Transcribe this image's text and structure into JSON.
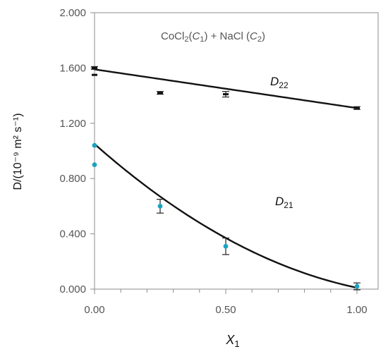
{
  "chart_data": {
    "type": "scatter",
    "title": "",
    "annotation": {
      "parts": [
        {
          "t": "CoCl",
          "sub": false,
          "italic": false
        },
        {
          "t": "2",
          "sub": true,
          "italic": false
        },
        {
          "t": "(",
          "sub": false,
          "italic": false
        },
        {
          "t": "C",
          "sub": false,
          "italic": true
        },
        {
          "t": "1",
          "sub": true,
          "italic": false
        },
        {
          "t": ") + NaCl (",
          "sub": false,
          "italic": false
        },
        {
          "t": "C",
          "sub": false,
          "italic": true
        },
        {
          "t": "2",
          "sub": true,
          "italic": false
        },
        {
          "t": ")",
          "sub": false,
          "italic": false
        }
      ]
    },
    "xlabel": {
      "main": "X",
      "sub": "1"
    },
    "ylabel": {
      "text": "D/(10⁻⁹ m² s⁻¹)"
    },
    "xlim": [
      0,
      1
    ],
    "ylim": [
      0,
      2
    ],
    "x_ticks": [
      0,
      0.5,
      1
    ],
    "x_tick_labels": [
      "0.00",
      "0.50",
      "1.00"
    ],
    "y_ticks": [
      0,
      0.4,
      0.8,
      1.2,
      1.6,
      2.0
    ],
    "y_tick_labels": [
      "0.000",
      "0.400",
      "0.800",
      "1.200",
      "1.600",
      "2.000"
    ],
    "grid": false,
    "series": [
      {
        "name": "D22",
        "label_main": "D",
        "label_sub": "22",
        "color": "#111111",
        "marker": "dash",
        "points": [
          {
            "x": 0.0,
            "y": 1.6,
            "err": 0.01
          },
          {
            "x": 0.0,
            "y": 1.55,
            "err": 0.0
          },
          {
            "x": 0.25,
            "y": 1.42,
            "err": 0.01
          },
          {
            "x": 0.5,
            "y": 1.41,
            "err": 0.02
          },
          {
            "x": 1.0,
            "y": 1.31,
            "err": 0.01
          }
        ],
        "fit": {
          "kind": "linear",
          "coef": [
            1.59,
            -0.28
          ]
        }
      },
      {
        "name": "D21",
        "label_main": "D",
        "label_sub": "21",
        "color": "#1aa3c2",
        "marker": "circle",
        "points": [
          {
            "x": 0.0,
            "y": 1.04,
            "err": 0.0
          },
          {
            "x": 0.0,
            "y": 0.9,
            "err": 0.0
          },
          {
            "x": 0.25,
            "y": 0.6,
            "err": 0.05
          },
          {
            "x": 0.5,
            "y": 0.31,
            "err": 0.06
          },
          {
            "x": 1.0,
            "y": 0.02,
            "err": 0.025
          }
        ],
        "fit": {
          "kind": "quadratic",
          "coef": [
            1.05,
            -1.68,
            0.64
          ]
        }
      }
    ]
  }
}
